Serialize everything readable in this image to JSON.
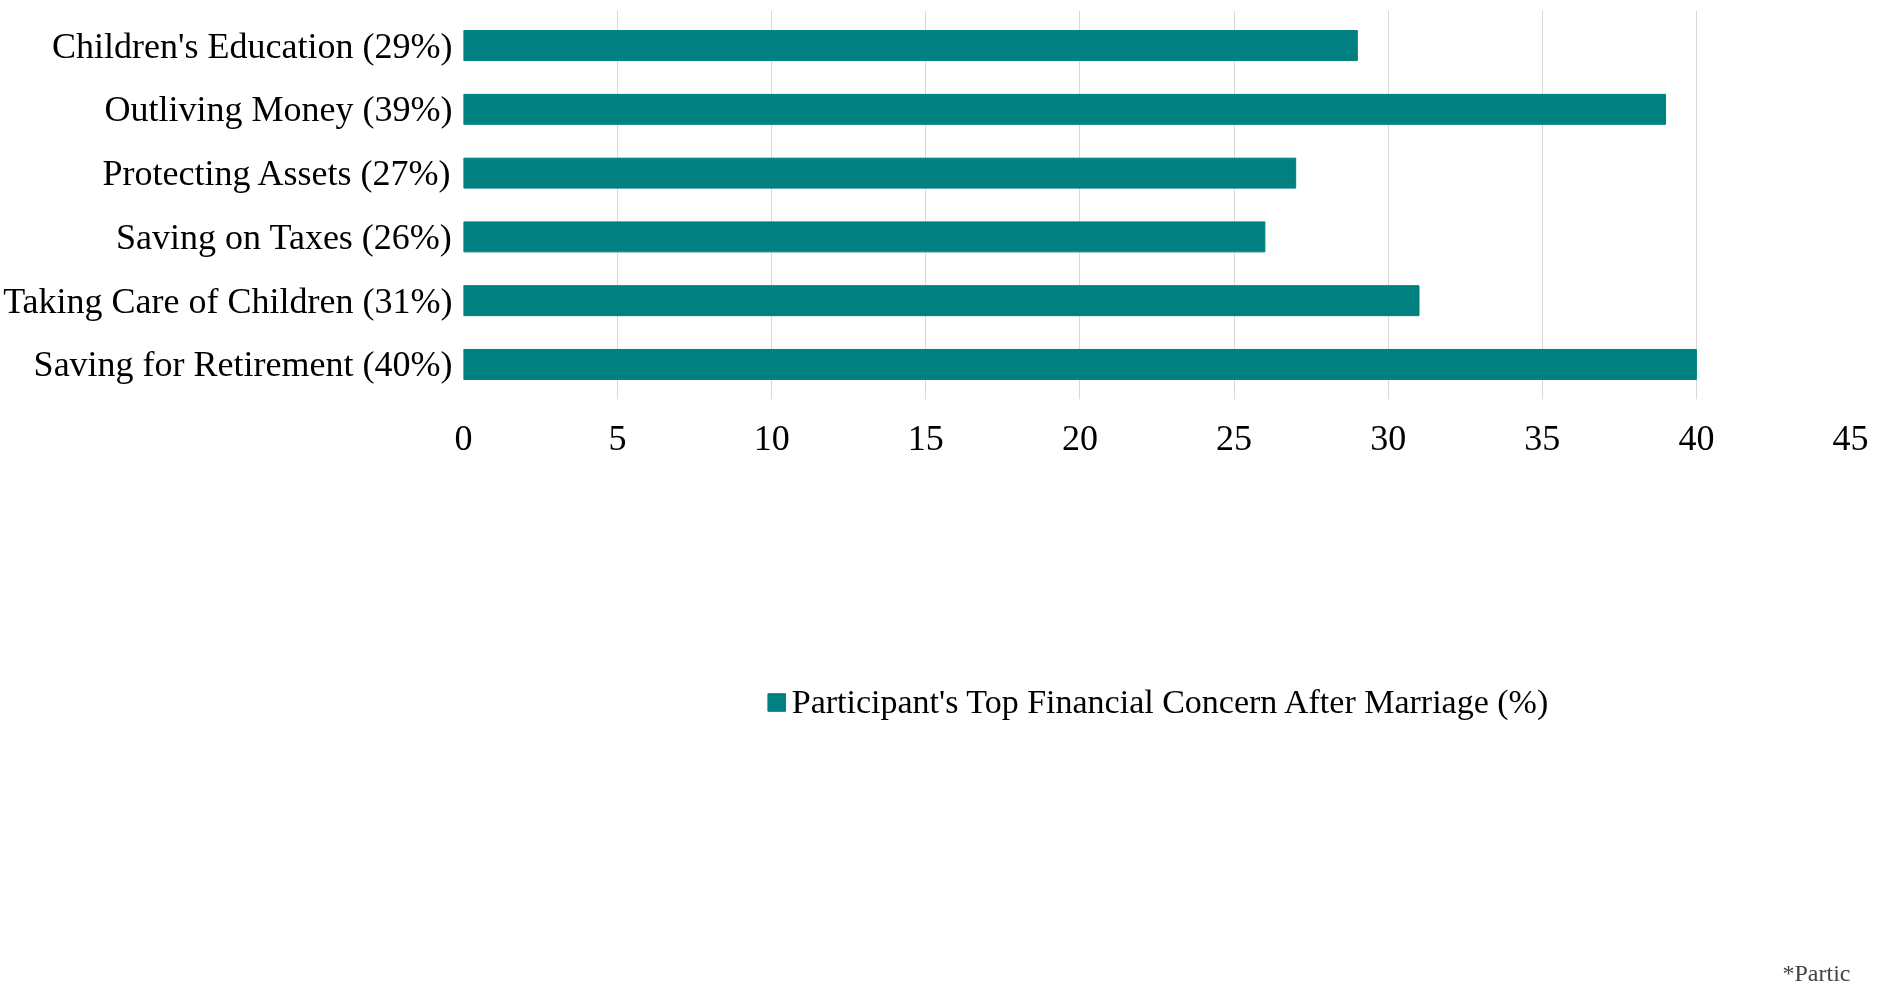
{
  "chart_data": {
    "type": "bar",
    "orientation": "horizontal",
    "categories": [
      "Children's Education (29%)",
      "Outliving Money (39%)",
      "Protecting Assets (27%)",
      "Saving on Taxes (26%)",
      "Taking Care of Children (31%)",
      "Saving for Retirement (40%)"
    ],
    "series": [
      {
        "name": "Participant's Top Financial Concern After Marriage (%)",
        "color": "#008080",
        "values": [
          29,
          39,
          27,
          26,
          31,
          40
        ]
      }
    ],
    "xlim": [
      0,
      45
    ],
    "xticks": [
      0,
      5,
      10,
      15,
      20,
      25,
      30,
      35,
      40,
      45
    ],
    "grid": "x",
    "legend": "bottom",
    "annotations": [
      "*Partic"
    ]
  }
}
